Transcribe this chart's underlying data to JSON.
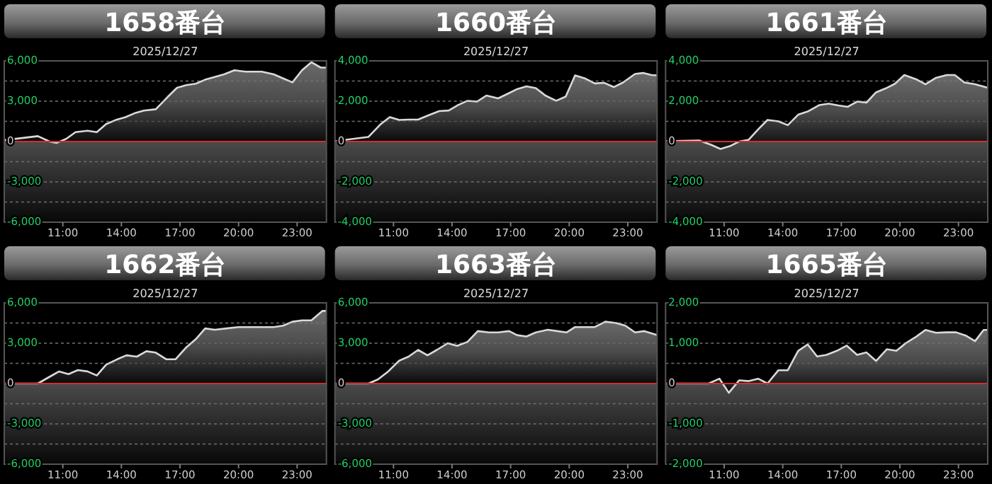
{
  "chart_data": [
    {
      "type": "area",
      "title": "1658番台",
      "subtitle": "2025/12/27",
      "xlim": [
        8,
        24.5
      ],
      "xticks": [
        {
          "value": 11,
          "label": "11:00"
        },
        {
          "value": 14,
          "label": "14:00"
        },
        {
          "value": 17,
          "label": "17:00"
        },
        {
          "value": 20,
          "label": "20:00"
        },
        {
          "value": 23,
          "label": "23:00"
        }
      ],
      "ylim": [
        -6000,
        6000
      ],
      "yticks": [
        {
          "value": -6000,
          "label": "-6,000"
        },
        {
          "value": -4500,
          "label": null
        },
        {
          "value": -3000,
          "label": "-3,000"
        },
        {
          "value": -1500,
          "label": null
        },
        {
          "value": 0,
          "label": "0"
        },
        {
          "value": 1500,
          "label": null
        },
        {
          "value": 3000,
          "label": "3,000"
        },
        {
          "value": 4500,
          "label": null
        },
        {
          "value": 6000,
          "label": "6,000"
        }
      ],
      "grid": "y",
      "ref_lines": [
        {
          "axis": "y",
          "value": 0,
          "color": "#d03030"
        }
      ],
      "series": [
        {
          "color": "#d9d9d9",
          "x": [
            8,
            9.72,
            10.32,
            10.69,
            11.17,
            11.65,
            12.26,
            12.74,
            13.22,
            13.71,
            14.19,
            14.67,
            15.15,
            15.76,
            16.36,
            16.85,
            17.33,
            17.81,
            18.29,
            18.78,
            19.26,
            19.79,
            20.35,
            21.19,
            21.8,
            22.28,
            22.76,
            23.25,
            23.73,
            24.21,
            24.5
          ],
          "values": [
            100,
            400,
            0,
            -100,
            200,
            700,
            800,
            700,
            1300,
            1600,
            1800,
            2100,
            2300,
            2400,
            3300,
            4000,
            4200,
            4300,
            4600,
            4800,
            5000,
            5300,
            5200,
            5200,
            5000,
            4700,
            4400,
            5300,
            5900,
            5500,
            5500
          ]
        }
      ]
    },
    {
      "type": "area",
      "title": "1660番台",
      "subtitle": "2025/12/27",
      "xlim": [
        8,
        24.5
      ],
      "xticks": [
        {
          "value": 11,
          "label": "11:00"
        },
        {
          "value": 14,
          "label": "14:00"
        },
        {
          "value": 17,
          "label": "17:00"
        },
        {
          "value": 20,
          "label": "20:00"
        },
        {
          "value": 23,
          "label": "23:00"
        }
      ],
      "ylim": [
        -4000,
        4000
      ],
      "yticks": [
        {
          "value": -4000,
          "label": "-4,000"
        },
        {
          "value": -3000,
          "label": null
        },
        {
          "value": -2000,
          "label": "-2,000"
        },
        {
          "value": -1000,
          "label": null
        },
        {
          "value": 0,
          "label": "0"
        },
        {
          "value": 1000,
          "label": null
        },
        {
          "value": 2000,
          "label": "2,000"
        },
        {
          "value": 3000,
          "label": null
        },
        {
          "value": 4000,
          "label": "4,000"
        }
      ],
      "grid": "y",
      "ref_lines": [
        {
          "axis": "y",
          "value": 0,
          "color": "#d03030"
        }
      ],
      "series": [
        {
          "color": "#d9d9d9",
          "x": [
            8,
            9.72,
            10.32,
            10.81,
            11.29,
            11.77,
            12.26,
            12.74,
            13.34,
            13.83,
            14.31,
            14.79,
            15.28,
            15.76,
            16.36,
            16.85,
            17.33,
            17.81,
            18.29,
            18.78,
            19.33,
            19.82,
            20.3,
            20.83,
            21.31,
            21.8,
            22.28,
            22.76,
            23.37,
            23.78,
            24.21,
            24.5
          ],
          "values": [
            20,
            230,
            840,
            1210,
            1070,
            1090,
            1090,
            1280,
            1510,
            1540,
            1810,
            2020,
            1980,
            2280,
            2140,
            2370,
            2600,
            2740,
            2650,
            2280,
            2020,
            2230,
            3280,
            3120,
            2880,
            2910,
            2700,
            2930,
            3350,
            3400,
            3300,
            3280
          ]
        }
      ]
    },
    {
      "type": "area",
      "title": "1661番台",
      "subtitle": "2025/12/27",
      "xlim": [
        8,
        24.5
      ],
      "xticks": [
        {
          "value": 11,
          "label": "11:00"
        },
        {
          "value": 14,
          "label": "14:00"
        },
        {
          "value": 17,
          "label": "17:00"
        },
        {
          "value": 20,
          "label": "20:00"
        },
        {
          "value": 23,
          "label": "23:00"
        }
      ],
      "ylim": [
        -4000,
        4000
      ],
      "yticks": [
        {
          "value": -4000,
          "label": "-4,000"
        },
        {
          "value": -3000,
          "label": null
        },
        {
          "value": -2000,
          "label": "-2,000"
        },
        {
          "value": -1000,
          "label": null
        },
        {
          "value": 0,
          "label": "0"
        },
        {
          "value": 1000,
          "label": null
        },
        {
          "value": 2000,
          "label": "2,000"
        },
        {
          "value": 3000,
          "label": null
        },
        {
          "value": 4000,
          "label": "4,000"
        }
      ],
      "grid": "y",
      "ref_lines": [
        {
          "axis": "y",
          "value": 0,
          "color": "#d03030"
        }
      ],
      "series": [
        {
          "color": "#d9d9d9",
          "x": [
            8,
            9.72,
            10.32,
            10.81,
            11.29,
            11.77,
            12.26,
            12.74,
            13.22,
            13.78,
            14.26,
            14.79,
            15.28,
            15.88,
            16.36,
            16.85,
            17.33,
            17.81,
            18.29,
            18.78,
            19.26,
            19.74,
            20.23,
            20.83,
            21.31,
            21.85,
            22.4,
            22.81,
            23.3,
            23.85,
            24.5
          ],
          "values": [
            20,
            50,
            -160,
            -370,
            -230,
            0,
            90,
            600,
            1070,
            1000,
            810,
            1330,
            1490,
            1810,
            1880,
            1790,
            1720,
            1980,
            1930,
            2440,
            2630,
            2860,
            3300,
            3090,
            2840,
            3160,
            3300,
            3300,
            2930,
            2840,
            2670
          ]
        }
      ]
    },
    {
      "type": "area",
      "title": "1662番台",
      "subtitle": "2025/12/27",
      "xlim": [
        8,
        24.5
      ],
      "xticks": [
        {
          "value": 11,
          "label": "11:00"
        },
        {
          "value": 14,
          "label": "14:00"
        },
        {
          "value": 17,
          "label": "17:00"
        },
        {
          "value": 20,
          "label": "20:00"
        },
        {
          "value": 23,
          "label": "23:00"
        }
      ],
      "ylim": [
        -6000,
        6000
      ],
      "yticks": [
        {
          "value": -6000,
          "label": "-6,000"
        },
        {
          "value": -4500,
          "label": null
        },
        {
          "value": -3000,
          "label": "-3,000"
        },
        {
          "value": -1500,
          "label": null
        },
        {
          "value": 0,
          "label": "0"
        },
        {
          "value": 1500,
          "label": null
        },
        {
          "value": 3000,
          "label": "3,000"
        },
        {
          "value": 4500,
          "label": null
        },
        {
          "value": 6000,
          "label": "6,000"
        }
      ],
      "grid": "y",
      "ref_lines": [
        {
          "axis": "y",
          "value": 0,
          "color": "#d03030"
        }
      ],
      "series": [
        {
          "color": "#d9d9d9",
          "x": [
            8,
            9.72,
            10.32,
            10.81,
            11.29,
            11.77,
            12.26,
            12.74,
            13.22,
            13.78,
            14.26,
            14.79,
            15.28,
            15.76,
            16.31,
            16.77,
            17.33,
            17.81,
            18.29,
            18.78,
            19.38,
            19.99,
            20.59,
            21.19,
            21.8,
            22.28,
            22.76,
            23.25,
            23.73,
            24.29,
            24.5
          ],
          "values": [
            0,
            0,
            500,
            900,
            700,
            1000,
            900,
            600,
            1400,
            1800,
            2100,
            2000,
            2400,
            2300,
            1800,
            1800,
            2700,
            3300,
            4100,
            4000,
            4100,
            4200,
            4200,
            4200,
            4200,
            4300,
            4600,
            4700,
            4700,
            5400,
            5400
          ]
        }
      ]
    },
    {
      "type": "area",
      "title": "1663番台",
      "subtitle": "2025/12/27",
      "xlim": [
        8,
        24.5
      ],
      "xticks": [
        {
          "value": 11,
          "label": "11:00"
        },
        {
          "value": 14,
          "label": "14:00"
        },
        {
          "value": 17,
          "label": "17:00"
        },
        {
          "value": 20,
          "label": "20:00"
        },
        {
          "value": 23,
          "label": "23:00"
        }
      ],
      "ylim": [
        -6000,
        6000
      ],
      "yticks": [
        {
          "value": -6000,
          "label": "-6,000"
        },
        {
          "value": -4500,
          "label": null
        },
        {
          "value": -3000,
          "label": "-3,000"
        },
        {
          "value": -1500,
          "label": null
        },
        {
          "value": 0,
          "label": "0"
        },
        {
          "value": 1500,
          "label": null
        },
        {
          "value": 3000,
          "label": "3,000"
        },
        {
          "value": 4500,
          "label": null
        },
        {
          "value": 6000,
          "label": "6,000"
        }
      ],
      "grid": "y",
      "ref_lines": [
        {
          "axis": "y",
          "value": 0,
          "color": "#d03030"
        }
      ],
      "series": [
        {
          "color": "#d9d9d9",
          "x": [
            8,
            9.72,
            10.2,
            10.73,
            11.29,
            11.77,
            12.26,
            12.74,
            13.22,
            13.78,
            14.26,
            14.79,
            15.32,
            15.88,
            16.36,
            16.92,
            17.33,
            17.81,
            18.29,
            18.9,
            19.38,
            19.86,
            20.3,
            20.83,
            21.31,
            21.85,
            22.4,
            22.88,
            23.37,
            23.85,
            24.5
          ],
          "values": [
            0,
            0,
            300,
            900,
            1700,
            2000,
            2500,
            2100,
            2500,
            3000,
            2800,
            3100,
            3900,
            3800,
            3800,
            3900,
            3600,
            3500,
            3800,
            4000,
            3900,
            3800,
            4200,
            4200,
            4200,
            4600,
            4500,
            4300,
            3800,
            3900,
            3600
          ]
        }
      ]
    },
    {
      "type": "area",
      "title": "1665番台",
      "subtitle": "2025/12/27",
      "xlim": [
        8,
        24.5
      ],
      "xticks": [
        {
          "value": 11,
          "label": "11:00"
        },
        {
          "value": 14,
          "label": "14:00"
        },
        {
          "value": 17,
          "label": "17:00"
        },
        {
          "value": 20,
          "label": "20:00"
        },
        {
          "value": 23,
          "label": "23:00"
        }
      ],
      "ylim": [
        -2000,
        2000
      ],
      "yticks": [
        {
          "value": -2000,
          "label": "-2,000"
        },
        {
          "value": -1500,
          "label": null
        },
        {
          "value": -1000,
          "label": "-1,000"
        },
        {
          "value": -500,
          "label": null
        },
        {
          "value": 0,
          "label": "0"
        },
        {
          "value": 500,
          "label": null
        },
        {
          "value": 1000,
          "label": "1,000"
        },
        {
          "value": 1500,
          "label": null
        },
        {
          "value": 2000,
          "label": "2,000"
        }
      ],
      "grid": "y",
      "ref_lines": [
        {
          "axis": "y",
          "value": 0,
          "color": "#d03030"
        }
      ],
      "series": [
        {
          "color": "#d9d9d9",
          "x": [
            8,
            10.2,
            10.76,
            11.24,
            11.77,
            12.26,
            12.74,
            13.22,
            13.78,
            14.26,
            14.79,
            15.28,
            15.76,
            16.24,
            16.77,
            17.28,
            17.81,
            18.29,
            18.78,
            19.33,
            19.82,
            20.3,
            20.83,
            21.31,
            21.85,
            22.4,
            22.88,
            23.37,
            23.85,
            24.29,
            24.5
          ],
          "values": [
            0,
            0,
            120,
            -230,
            80,
            60,
            120,
            0,
            330,
            330,
            810,
            970,
            670,
            710,
            810,
            940,
            710,
            770,
            560,
            850,
            810,
            1000,
            1160,
            1330,
            1260,
            1270,
            1270,
            1190,
            1050,
            1330,
            1330
          ]
        }
      ]
    }
  ]
}
